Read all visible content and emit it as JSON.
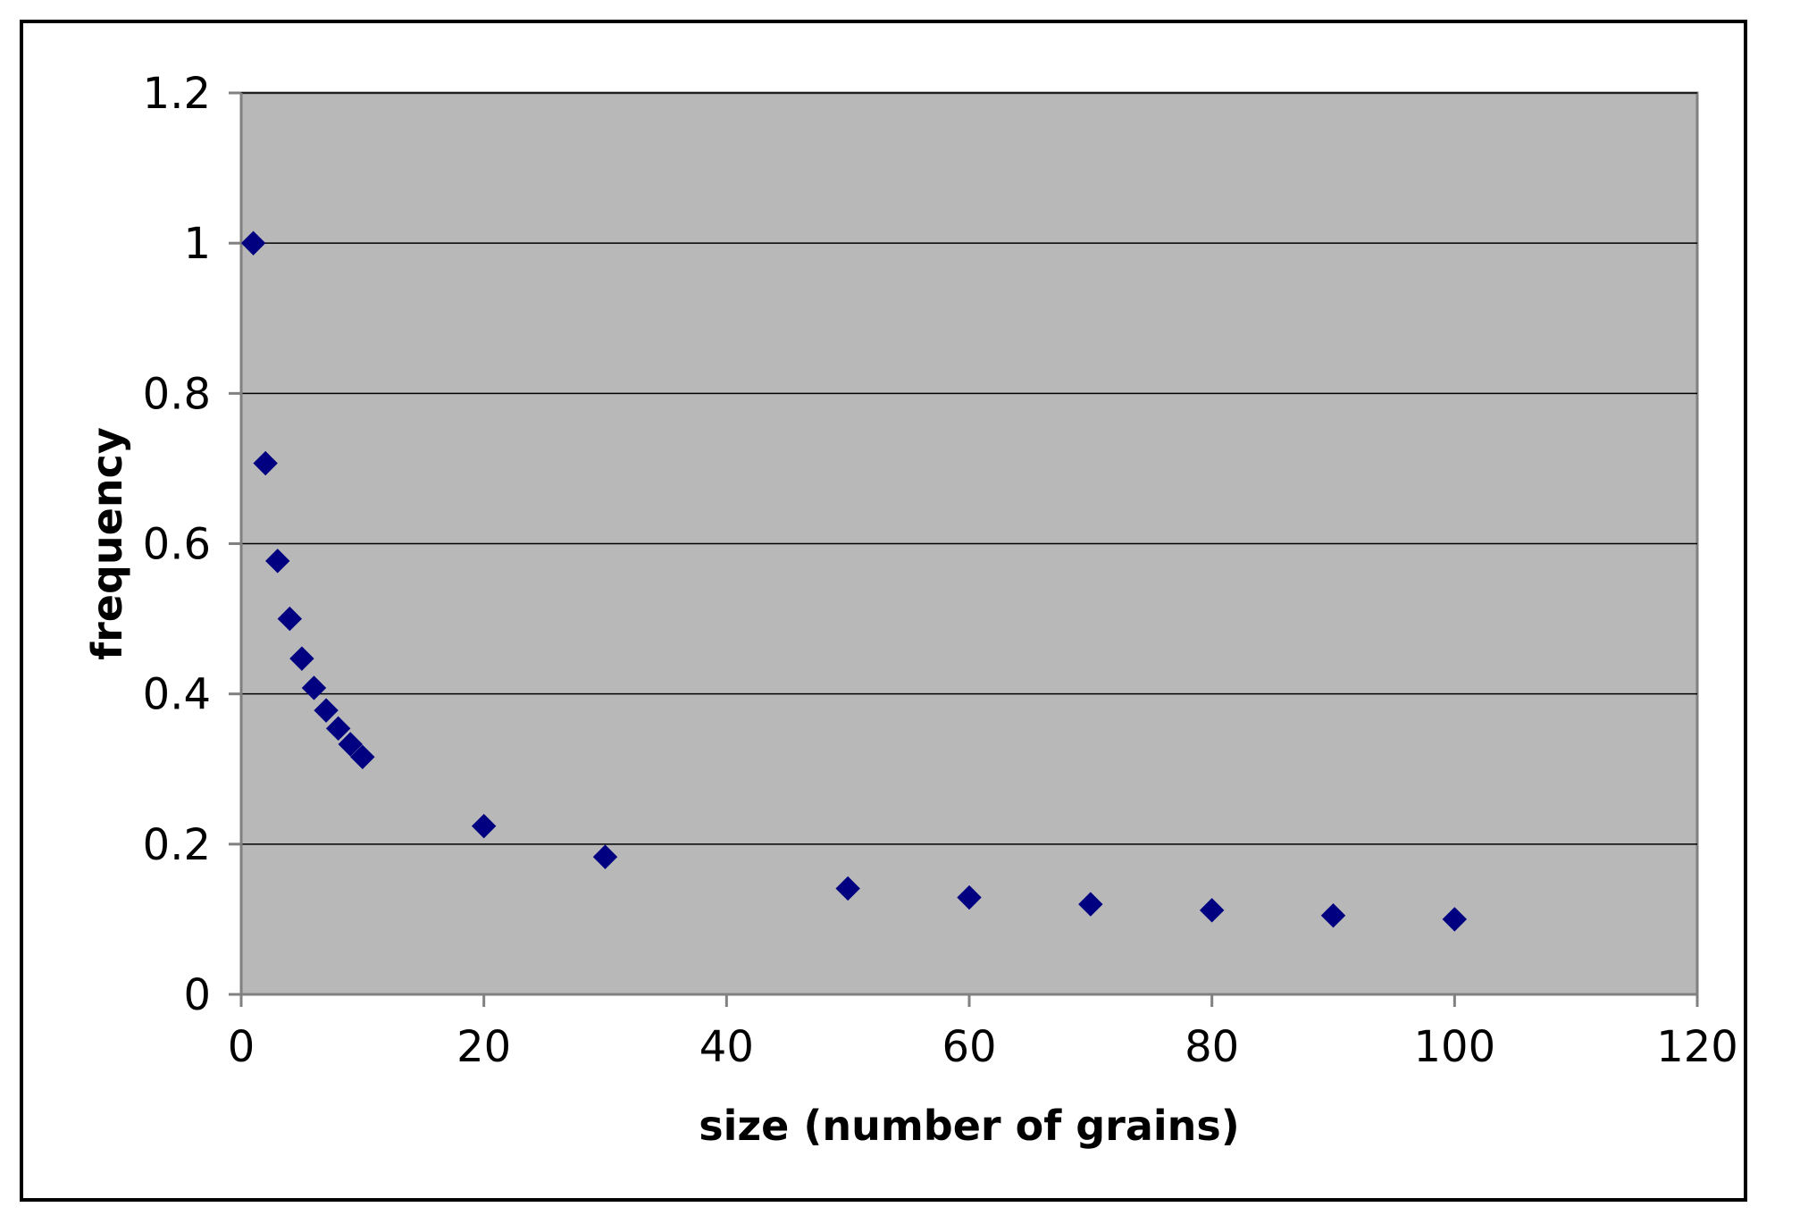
{
  "chart_data": {
    "type": "scatter",
    "title": "",
    "xlabel": "size (number of grains)",
    "ylabel": "frequency",
    "xlim": [
      0,
      120
    ],
    "ylim": [
      0,
      1.2
    ],
    "x_ticks": [
      "0",
      "20",
      "40",
      "60",
      "80",
      "100",
      "120"
    ],
    "y_ticks": [
      "0",
      "0.2",
      "0.4",
      "0.6",
      "0.8",
      "1",
      "1.2"
    ],
    "x_tick_values": [
      0,
      20,
      40,
      60,
      80,
      100,
      120
    ],
    "y_tick_values": [
      0,
      0.2,
      0.4,
      0.6,
      0.8,
      1,
      1.2
    ],
    "grid": "horizontal major gridlines",
    "legend": "none",
    "plot_background": "#b8b8b8",
    "marker": "diamond",
    "marker_color": "#000080",
    "series": [
      {
        "points": [
          {
            "x": 1,
            "y": 1.0
          },
          {
            "x": 2,
            "y": 0.707
          },
          {
            "x": 3,
            "y": 0.577
          },
          {
            "x": 4,
            "y": 0.5
          },
          {
            "x": 5,
            "y": 0.447
          },
          {
            "x": 6,
            "y": 0.408
          },
          {
            "x": 7,
            "y": 0.378
          },
          {
            "x": 8,
            "y": 0.354
          },
          {
            "x": 9,
            "y": 0.333
          },
          {
            "x": 10,
            "y": 0.316
          },
          {
            "x": 20,
            "y": 0.224
          },
          {
            "x": 30,
            "y": 0.183
          },
          {
            "x": 50,
            "y": 0.141
          },
          {
            "x": 60,
            "y": 0.129
          },
          {
            "x": 70,
            "y": 0.12
          },
          {
            "x": 80,
            "y": 0.112
          },
          {
            "x": 90,
            "y": 0.105
          },
          {
            "x": 100,
            "y": 0.1
          }
        ]
      }
    ]
  }
}
